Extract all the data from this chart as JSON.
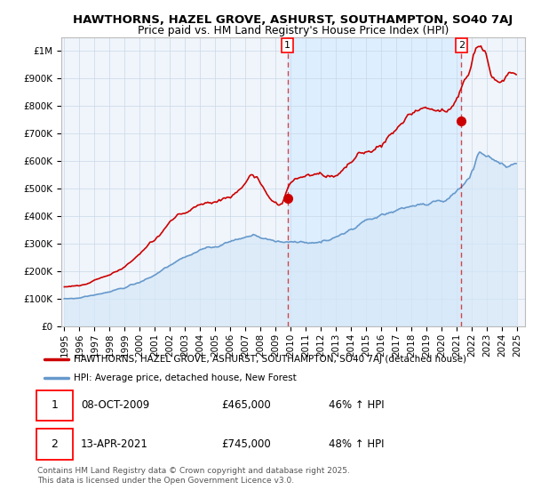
{
  "title_line1": "HAWTHORNS, HAZEL GROVE, ASHURST, SOUTHAMPTON, SO40 7AJ",
  "title_line2": "Price paid vs. HM Land Registry's House Price Index (HPI)",
  "ylim": [
    0,
    1050000
  ],
  "xlim_start": 1994.8,
  "xlim_end": 2025.5,
  "yticks": [
    0,
    100000,
    200000,
    300000,
    400000,
    500000,
    600000,
    700000,
    800000,
    900000,
    1000000
  ],
  "ytick_labels": [
    "£0",
    "£100K",
    "£200K",
    "£300K",
    "£400K",
    "£500K",
    "£600K",
    "£700K",
    "£800K",
    "£900K",
    "£1M"
  ],
  "xticks": [
    1995,
    1996,
    1997,
    1998,
    1999,
    2000,
    2001,
    2002,
    2003,
    2004,
    2005,
    2006,
    2007,
    2008,
    2009,
    2010,
    2011,
    2012,
    2013,
    2014,
    2015,
    2016,
    2017,
    2018,
    2019,
    2020,
    2021,
    2022,
    2023,
    2024,
    2025
  ],
  "red_line_color": "#cc0000",
  "blue_line_color": "#6699cc",
  "blue_fill_color": "#d6e8f7",
  "shaded_region_color": "#ddeeff",
  "marker1_x": 2009.77,
  "marker1_y": 465000,
  "marker2_x": 2021.28,
  "marker2_y": 745000,
  "legend_line1": "HAWTHORNS, HAZEL GROVE, ASHURST, SOUTHAMPTON, SO40 7AJ (detached house)",
  "legend_line2": "HPI: Average price, detached house, New Forest",
  "marker1_date": "08-OCT-2009",
  "marker1_price": "£465,000",
  "marker1_hpi": "46% ↑ HPI",
  "marker2_date": "13-APR-2021",
  "marker2_price": "£745,000",
  "marker2_hpi": "48% ↑ HPI",
  "footnote": "Contains HM Land Registry data © Crown copyright and database right 2025.\nThis data is licensed under the Open Government Licence v3.0.",
  "bg_color": "#ffffff",
  "plot_bg_color": "#f0f5fb",
  "grid_color": "#c8d8e8"
}
